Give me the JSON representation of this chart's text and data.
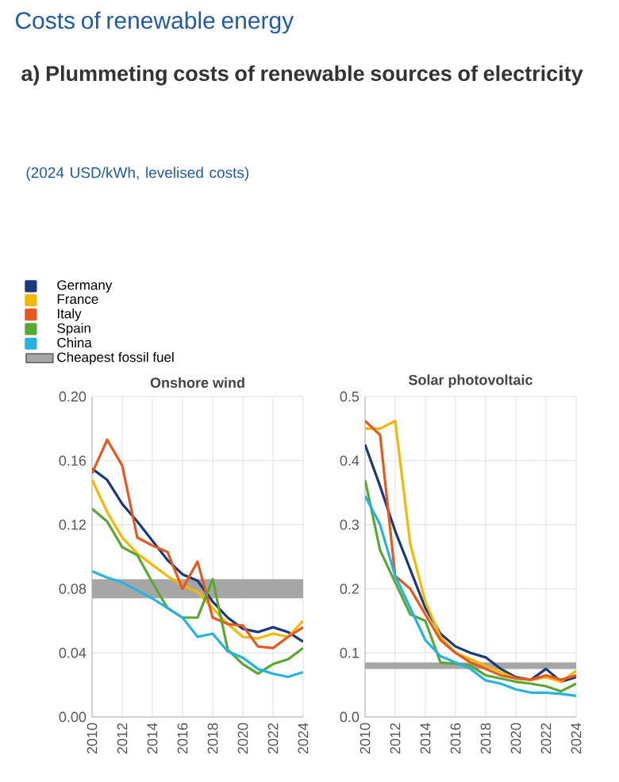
{
  "chart_data": [
    {
      "type": "line",
      "title": "Onshore wind",
      "annotations": [
        "Costs of renewable energy",
        "a) Plummeting costs of renewable sources of electricity",
        "(2024 USD/kWh, levelised costs)"
      ],
      "x": [
        2010,
        2011,
        2012,
        2013,
        2014,
        2015,
        2016,
        2017,
        2018,
        2019,
        2020,
        2021,
        2022,
        2023,
        2024
      ],
      "series": [
        {
          "name": "Germany",
          "color": "#1b3a7e",
          "values": [
            0.155,
            0.148,
            0.133,
            0.122,
            0.11,
            0.098,
            0.089,
            0.085,
            0.072,
            0.062,
            0.055,
            0.053,
            0.056,
            0.053,
            0.047
          ]
        },
        {
          "name": "France",
          "color": "#f5b800",
          "values": [
            0.148,
            0.128,
            0.112,
            0.102,
            0.095,
            0.088,
            0.082,
            0.078,
            0.068,
            0.058,
            0.05,
            0.049,
            0.052,
            0.05,
            0.06
          ]
        },
        {
          "name": "Italy",
          "color": "#e8581e",
          "values": [
            0.152,
            0.173,
            0.157,
            0.112,
            0.107,
            0.103,
            0.08,
            0.097,
            0.062,
            0.058,
            0.057,
            0.044,
            0.043,
            0.05,
            0.056
          ]
        },
        {
          "name": "Spain",
          "color": "#5aa832",
          "values": [
            0.13,
            0.122,
            0.106,
            0.101,
            0.084,
            0.068,
            0.062,
            0.062,
            0.086,
            0.042,
            0.033,
            0.027,
            0.033,
            0.036,
            0.043
          ]
        },
        {
          "name": "China",
          "color": "#25b3e0",
          "values": [
            0.091,
            0.087,
            0.084,
            0.079,
            0.074,
            0.068,
            0.062,
            0.05,
            0.052,
            0.041,
            0.037,
            0.03,
            0.027,
            0.025,
            0.028
          ]
        }
      ],
      "bands": [
        {
          "axis": "y",
          "from": 0.074,
          "to": 0.086,
          "label": "Cheapest fossil fuel",
          "color": "#a6a6a6"
        }
      ],
      "xlim": [
        2010,
        2024
      ],
      "xticks": [
        2010,
        2012,
        2014,
        2016,
        2018,
        2020,
        2022,
        2024
      ],
      "ylim": [
        0,
        0.2
      ],
      "yticks": [
        {
          "value": 0,
          "label": "0.00"
        },
        {
          "value": 0.04,
          "label": "0.04"
        },
        {
          "value": 0.08,
          "label": "0.08"
        },
        {
          "value": 0.12,
          "label": "0.12"
        },
        {
          "value": 0.16,
          "label": "0.16"
        },
        {
          "value": 0.2,
          "label": "0.20"
        }
      ],
      "grid": true,
      "legend": "top left"
    },
    {
      "type": "line",
      "title": "Solar photovoltaic",
      "x": [
        2010,
        2011,
        2012,
        2013,
        2014,
        2015,
        2016,
        2017,
        2018,
        2019,
        2020,
        2021,
        2022,
        2023,
        2024
      ],
      "series": [
        {
          "color": "#1b3a7e",
          "values": [
            0.425,
            0.36,
            0.29,
            0.23,
            0.17,
            0.13,
            0.11,
            0.1,
            0.093,
            0.075,
            0.062,
            0.058,
            0.075,
            0.055,
            0.062
          ]
        },
        {
          "color": "#f5b800",
          "values": [
            0.45,
            0.45,
            0.462,
            0.27,
            0.18,
            0.125,
            0.1,
            0.09,
            0.08,
            0.07,
            0.06,
            0.058,
            0.062,
            0.055,
            0.072
          ]
        },
        {
          "color": "#e8581e",
          "values": [
            0.462,
            0.44,
            0.22,
            0.2,
            0.16,
            0.12,
            0.1,
            0.085,
            0.075,
            0.065,
            0.06,
            0.058,
            0.065,
            0.058,
            0.065
          ]
        },
        {
          "color": "#5aa832",
          "values": [
            0.37,
            0.26,
            0.21,
            0.16,
            0.15,
            0.085,
            0.083,
            0.08,
            0.065,
            0.06,
            0.055,
            0.052,
            0.048,
            0.04,
            0.052
          ]
        },
        {
          "color": "#25b3e0",
          "values": [
            0.345,
            0.3,
            0.22,
            0.17,
            0.12,
            0.095,
            0.085,
            0.075,
            0.057,
            0.052,
            0.043,
            0.038,
            0.038,
            0.036,
            0.033
          ]
        }
      ],
      "bands": [
        {
          "axis": "y",
          "from": 0.075,
          "to": 0.085,
          "color": "#a6a6a6"
        }
      ],
      "xlim": [
        2010,
        2024
      ],
      "xticks": [
        2010,
        2012,
        2014,
        2016,
        2018,
        2020,
        2022,
        2024
      ],
      "ylim": [
        0,
        0.5
      ],
      "yticks": [
        {
          "value": 0,
          "label": "0.0"
        },
        {
          "value": 0.1,
          "label": "0.1"
        },
        {
          "value": 0.2,
          "label": "0.2"
        },
        {
          "value": 0.3,
          "label": "0.3"
        },
        {
          "value": 0.4,
          "label": "0.4"
        },
        {
          "value": 0.5,
          "label": "0.5"
        }
      ],
      "grid": true
    }
  ]
}
